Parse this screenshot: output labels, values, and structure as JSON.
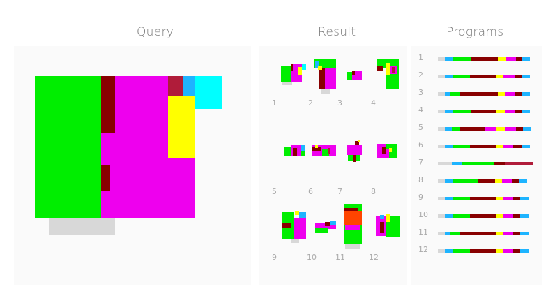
{
  "headers": {
    "query": "Query",
    "result": "Result",
    "programs": "Programs"
  },
  "colors": {
    "green": "#00ee00",
    "darkred": "#880000",
    "magenta": "#ee00ee",
    "crimson": "#b01c3a",
    "blue": "#1eb4ff",
    "cyan": "#00ffff",
    "yellow": "#ffff00",
    "gray": "#d8d8d8",
    "orange": "#ff4400"
  },
  "results": [
    {
      "label": "1"
    },
    {
      "label": "2"
    },
    {
      "label": "3"
    },
    {
      "label": "4"
    },
    {
      "label": "5"
    },
    {
      "label": "6"
    },
    {
      "label": "7"
    },
    {
      "label": "8"
    },
    {
      "label": "9"
    },
    {
      "label": "10"
    },
    {
      "label": "11"
    },
    {
      "label": "12"
    }
  ],
  "programs": [
    {
      "label": "1",
      "seq": [
        [
          "gray",
          10
        ],
        [
          "blue",
          12
        ],
        [
          "green",
          26
        ],
        [
          "darkred",
          38
        ],
        [
          "yellow",
          12
        ],
        [
          "magenta",
          14
        ],
        [
          "darkred",
          8
        ],
        [
          "blue",
          12
        ]
      ]
    },
    {
      "label": "2",
      "seq": [
        [
          "gray",
          10
        ],
        [
          "blue",
          12
        ],
        [
          "green",
          24
        ],
        [
          "darkred",
          38
        ],
        [
          "yellow",
          10
        ],
        [
          "magenta",
          16
        ],
        [
          "darkred",
          10
        ],
        [
          "blue",
          12
        ]
      ]
    },
    {
      "label": "3",
      "seq": [
        [
          "gray",
          10
        ],
        [
          "blue",
          8
        ],
        [
          "green",
          14
        ],
        [
          "darkred",
          54
        ],
        [
          "yellow",
          10
        ],
        [
          "magenta",
          14
        ],
        [
          "darkred",
          10
        ],
        [
          "blue",
          12
        ]
      ]
    },
    {
      "label": "4",
      "seq": [
        [
          "gray",
          10
        ],
        [
          "blue",
          12
        ],
        [
          "green",
          26
        ],
        [
          "darkred",
          36
        ],
        [
          "yellow",
          12
        ],
        [
          "magenta",
          14
        ],
        [
          "darkred",
          10
        ],
        [
          "blue",
          12
        ]
      ]
    },
    {
      "label": "5",
      "seq": [
        [
          "gray",
          10
        ],
        [
          "blue",
          10
        ],
        [
          "green",
          12
        ],
        [
          "darkred",
          36
        ],
        [
          "magenta",
          16
        ],
        [
          "yellow",
          12
        ],
        [
          "magenta",
          16
        ],
        [
          "darkred",
          10
        ],
        [
          "blue",
          12
        ]
      ]
    },
    {
      "label": "6",
      "seq": [
        [
          "gray",
          10
        ],
        [
          "blue",
          12
        ],
        [
          "green",
          24
        ],
        [
          "darkred",
          38
        ],
        [
          "yellow",
          10
        ],
        [
          "magenta",
          14
        ],
        [
          "darkred",
          12
        ],
        [
          "blue",
          12
        ]
      ]
    },
    {
      "label": "7",
      "seq": [
        [
          "gray",
          20
        ],
        [
          "blue",
          14
        ],
        [
          "green",
          46
        ],
        [
          "darkred",
          16
        ],
        [
          "crimson",
          40
        ]
      ]
    },
    {
      "label": "8",
      "seq": [
        [
          "gray",
          10
        ],
        [
          "blue",
          12
        ],
        [
          "green",
          36
        ],
        [
          "darkred",
          24
        ],
        [
          "yellow",
          10
        ],
        [
          "magenta",
          14
        ],
        [
          "darkred",
          10
        ],
        [
          "blue",
          12
        ]
      ]
    },
    {
      "label": "9",
      "seq": [
        [
          "gray",
          10
        ],
        [
          "blue",
          12
        ],
        [
          "green",
          24
        ],
        [
          "darkred",
          38
        ],
        [
          "yellow",
          10
        ],
        [
          "magenta",
          14
        ],
        [
          "darkred",
          10
        ],
        [
          "blue",
          12
        ]
      ]
    },
    {
      "label": "10",
      "seq": [
        [
          "gray",
          10
        ],
        [
          "blue",
          12
        ],
        [
          "green",
          24
        ],
        [
          "darkred",
          38
        ],
        [
          "yellow",
          10
        ],
        [
          "magenta",
          14
        ],
        [
          "darkred",
          10
        ],
        [
          "blue",
          12
        ]
      ]
    },
    {
      "label": "11",
      "seq": [
        [
          "gray",
          10
        ],
        [
          "blue",
          8
        ],
        [
          "green",
          14
        ],
        [
          "darkred",
          52
        ],
        [
          "yellow",
          10
        ],
        [
          "magenta",
          14
        ],
        [
          "darkred",
          10
        ],
        [
          "blue",
          12
        ]
      ]
    },
    {
      "label": "12",
      "seq": [
        [
          "gray",
          10
        ],
        [
          "blue",
          12
        ],
        [
          "green",
          24
        ],
        [
          "darkred",
          38
        ],
        [
          "yellow",
          10
        ],
        [
          "magenta",
          14
        ],
        [
          "darkred",
          10
        ],
        [
          "blue",
          12
        ]
      ]
    }
  ]
}
